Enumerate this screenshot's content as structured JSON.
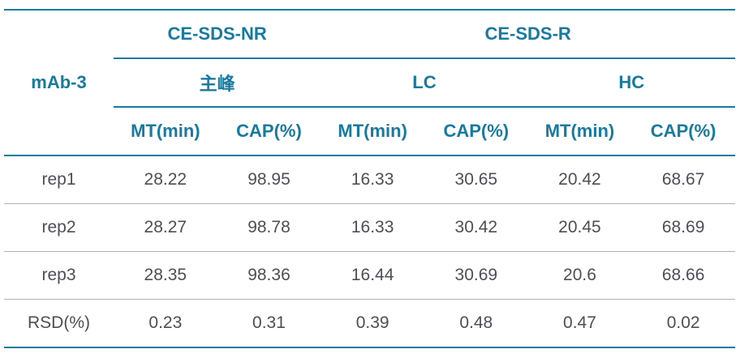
{
  "table": {
    "row_label_header": "mAb-3",
    "top_groups": [
      {
        "label": "CE-SDS-NR",
        "colspan": 2
      },
      {
        "label": "CE-SDS-R",
        "colspan": 4
      }
    ],
    "sub_groups": [
      {
        "label": "主峰",
        "colspan": 2
      },
      {
        "label": "LC",
        "colspan": 2
      },
      {
        "label": "HC",
        "colspan": 2
      }
    ],
    "column_headers": [
      "MT(min)",
      "CAP(%)",
      "MT(min)",
      "CAP(%)",
      "MT(min)",
      "CAP(%)"
    ],
    "rows": [
      {
        "label": "rep1",
        "values": [
          "28.22",
          "98.95",
          "16.33",
          "30.65",
          "20.42",
          "68.67"
        ]
      },
      {
        "label": "rep2",
        "values": [
          "28.27",
          "98.78",
          "16.33",
          "30.42",
          "20.45",
          "68.69"
        ]
      },
      {
        "label": "rep3",
        "values": [
          "28.35",
          "98.36",
          "16.44",
          "30.69",
          "20.6",
          "68.66"
        ]
      },
      {
        "label": "RSD(%)",
        "values": [
          "0.23",
          "0.31",
          "0.39",
          "0.48",
          "0.47",
          "0.02"
        ]
      }
    ],
    "colors": {
      "header_text": "#187a9e",
      "teal_rule": "#187a9e",
      "body_text": "#4d4e56",
      "gray_rule": "#b1b1b1",
      "background": "#ffffff"
    }
  }
}
